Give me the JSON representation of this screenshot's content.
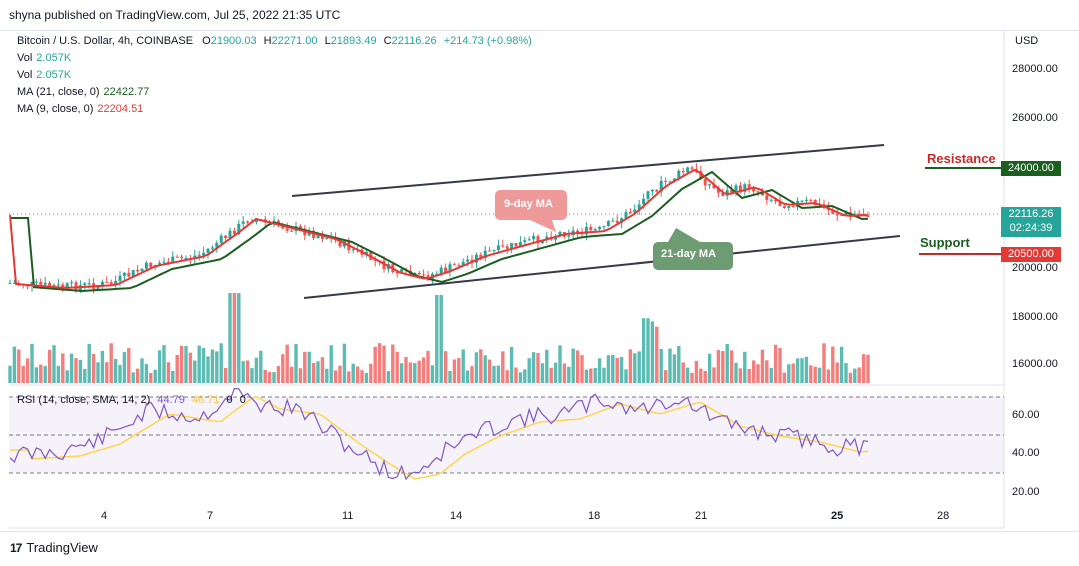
{
  "header": {
    "published_line": "shyna published on TradingView.com, Jul 25, 2022 21:35 UTC"
  },
  "legend": {
    "symbol": "Bitcoin / U.S. Dollar, 4h, COINBASE",
    "open_label": "O",
    "open": "21900.03",
    "high_label": "H",
    "high": "22271.00",
    "low_label": "L",
    "low": "21893.49",
    "close_label": "C",
    "close": "22116.26",
    "change": "+214.73 (+0.98%)",
    "vol1_label": "Vol",
    "vol1_value": "2.057K",
    "vol2_label": "Vol",
    "vol2_value": "2.057K",
    "ma21_label": "MA (21, close, 0)",
    "ma21_value": "22422.77",
    "ma9_label": "MA (9, close, 0)",
    "ma9_value": "22204.51"
  },
  "price_axis": {
    "currency": "USD",
    "ticks": [
      "28000.00",
      "26000.00",
      "24000.00",
      "22116.26",
      "20500.00",
      "20000.00",
      "18000.00",
      "16000.00"
    ],
    "current_price": "22116.26",
    "countdown": "02:24:39",
    "resistance_price": "24000.00",
    "support_price": "20500.00"
  },
  "rsi": {
    "legend": "RSI (14, close, SMA, 14, 2)",
    "value1": "44.79",
    "value2": "46.71",
    "value3": "0",
    "value4": "0",
    "ticks": [
      "60.00",
      "40.00",
      "20.00"
    ]
  },
  "time_axis": {
    "ticks": [
      "4",
      "7",
      "11",
      "14",
      "18",
      "21",
      "25",
      "28"
    ]
  },
  "annotations": {
    "resistance": "Resistance",
    "support": "Support",
    "ma9_callout": "9-day MA",
    "ma21_callout": "21-day MA"
  },
  "footer": {
    "brand": "TradingView"
  },
  "colors": {
    "up": "#26a69a",
    "down": "#ef5350",
    "ma9": "#e53935",
    "ma21": "#1b5e20",
    "resistance": "#c62828",
    "support_text": "#1b5e20",
    "rsi_line": "#7e57c2",
    "rsi_sma": "#ffd54f"
  }
}
